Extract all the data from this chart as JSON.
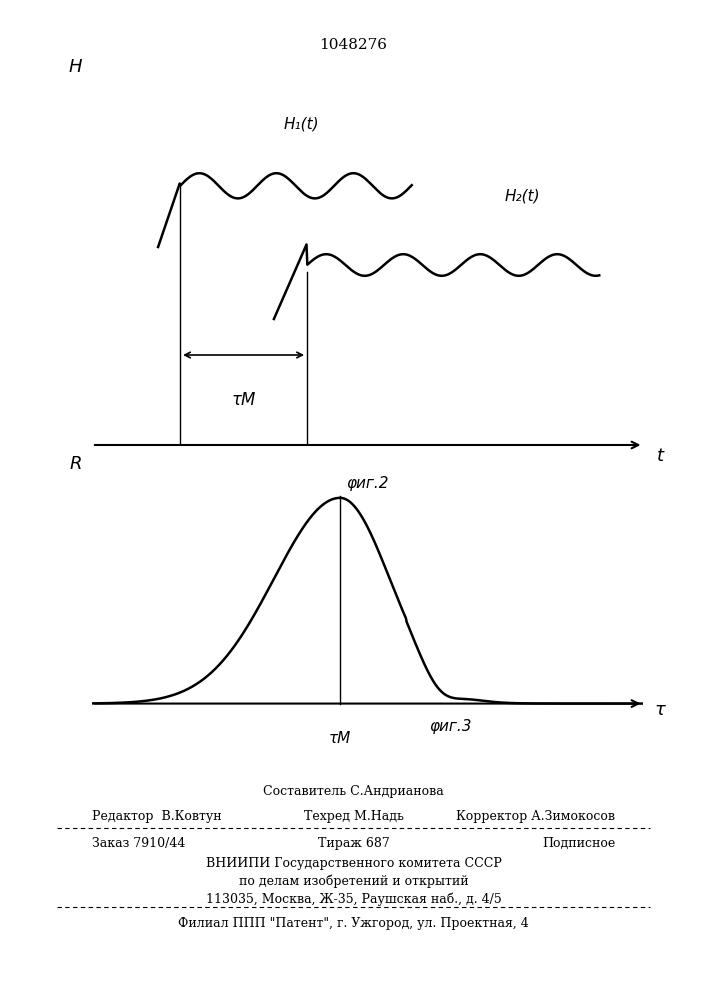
{
  "title": "1048276",
  "fig2_label": "φиг.2",
  "fig3_label": "φиг.3",
  "h_axis_label": "H",
  "r_axis_label": "R",
  "t_axis_label": "t",
  "tau_axis_label": "τ",
  "tau_m_label": "τМ",
  "h1_label": "H₁(t)",
  "h2_label": "H₂(t)",
  "footer_sestavitel": "Составитель С.Андрианова",
  "footer_redaktor": "Редактор  В.Ковтун",
  "footer_tekhred": "Техред М.Надь",
  "footer_korrektor": "Корректор А.Зимокосов",
  "footer_zakaz": "Заказ 7910/44",
  "footer_tirazh": "Тираж 687",
  "footer_podpisnoe": "Подписное",
  "footer_vniip1": "ВНИИПИ Государственного комитета СССР",
  "footer_vniip2": "по делам изобретений и открытий",
  "footer_addr": "113035, Москва, Ж-35, Раушская наб., д. 4/5",
  "footer_filial": "Филиал ППП \"Патент\", г. Ужгород, ул. Проектная, 4",
  "bg_color": "#ffffff"
}
